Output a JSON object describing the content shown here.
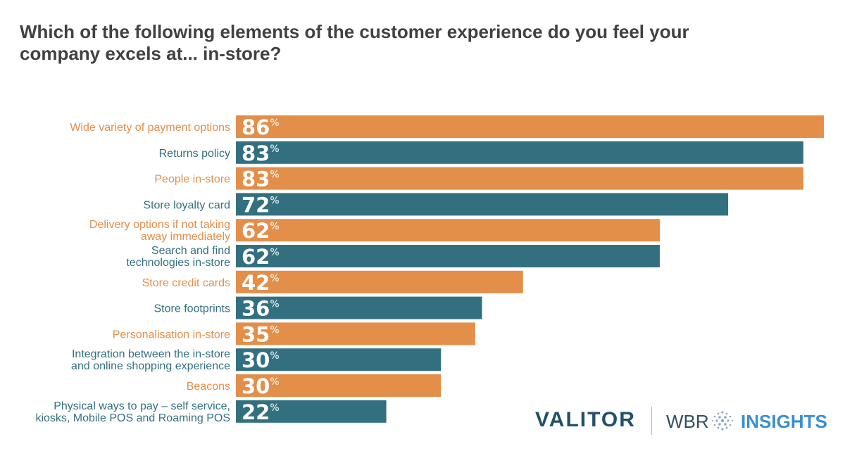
{
  "title": "Which of the following elements of the customer experience do you feel your company excels at... in-store?",
  "colors": {
    "orange": "#e38e49",
    "teal": "#33707f",
    "title": "#414042"
  },
  "percent_suffix": "%",
  "chart_data": {
    "type": "bar",
    "orientation": "horizontal",
    "title": "Which of the following elements of the customer experience do you feel your company excels at... in-store?",
    "xlim": [
      0,
      86
    ],
    "categories": [
      [
        "Wide variety of payment options"
      ],
      [
        "Returns policy"
      ],
      [
        "People in-store"
      ],
      [
        "Store loyalty card"
      ],
      [
        "Delivery options if not taking",
        "away immediately"
      ],
      [
        "Search and find",
        "technologies in-store"
      ],
      [
        "Store credit cards"
      ],
      [
        "Store footprints"
      ],
      [
        "Personalisation in-store"
      ],
      [
        "Integration between the in-store",
        "and online shopping experience"
      ],
      [
        "Beacons"
      ],
      [
        "Physical ways to pay – self service,",
        "kiosks, Mobile POS and Roaming POS"
      ]
    ],
    "values": [
      86,
      83,
      83,
      72,
      62,
      62,
      42,
      36,
      35,
      30,
      30,
      22
    ],
    "bar_colors": [
      "orange",
      "teal",
      "orange",
      "teal",
      "orange",
      "teal",
      "orange",
      "teal",
      "orange",
      "teal",
      "orange",
      "teal"
    ],
    "value_suffix": "%"
  },
  "logos": {
    "valitor": "VALITOR",
    "wbr": "WBR",
    "insights": "INSIGHTS"
  }
}
